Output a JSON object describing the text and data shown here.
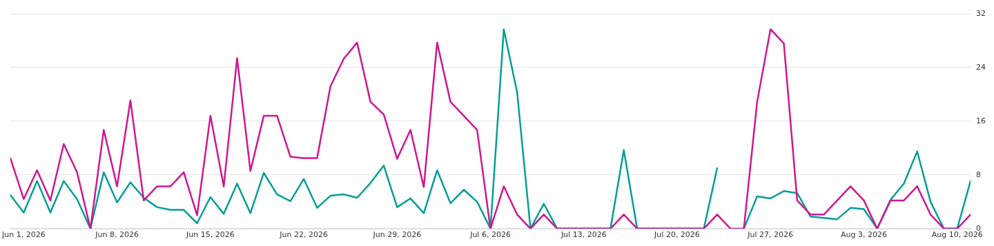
{
  "chart_data": {
    "type": "line",
    "x": [
      "2026-05-31",
      "2026-06-01",
      "2026-06-02",
      "2026-06-03",
      "2026-06-04",
      "2026-06-05",
      "2026-06-06",
      "2026-06-07",
      "2026-06-08",
      "2026-06-09",
      "2026-06-10",
      "2026-06-11",
      "2026-06-12",
      "2026-06-13",
      "2026-06-14",
      "2026-06-15",
      "2026-06-16",
      "2026-06-17",
      "2026-06-18",
      "2026-06-19",
      "2026-06-20",
      "2026-06-21",
      "2026-06-22",
      "2026-06-23",
      "2026-06-24",
      "2026-06-25",
      "2026-06-26",
      "2026-06-27",
      "2026-06-28",
      "2026-06-29",
      "2026-06-30",
      "2026-07-01",
      "2026-07-02",
      "2026-07-03",
      "2026-07-04",
      "2026-07-05",
      "2026-07-06",
      "2026-07-07",
      "2026-07-08",
      "2026-07-09",
      "2026-07-10",
      "2026-07-11",
      "2026-07-12",
      "2026-07-13",
      "2026-07-14",
      "2026-07-15",
      "2026-07-16",
      "2026-07-17",
      "2026-07-18",
      "2026-07-19",
      "2026-07-20",
      "2026-07-21",
      "2026-07-22",
      "2026-07-23",
      "2026-07-24",
      "2026-07-25",
      "2026-07-26",
      "2026-07-27",
      "2026-07-28",
      "2026-07-29",
      "2026-07-30",
      "2026-07-31",
      "2026-08-01",
      "2026-08-02",
      "2026-08-03",
      "2026-08-04",
      "2026-08-05",
      "2026-08-06",
      "2026-08-07",
      "2026-08-08",
      "2026-08-09",
      "2026-08-10",
      "2026-08-11"
    ],
    "series": [
      {
        "color": "#d0168f",
        "values": [
          10.5,
          4.4,
          8.7,
          4.2,
          12.6,
          8.4,
          0,
          14.7,
          6.3,
          19.1,
          4.2,
          6.3,
          6.3,
          8.4,
          2,
          16.8,
          6.3,
          25.4,
          8.6,
          16.8,
          16.8,
          10.7,
          10.5,
          10.5,
          21.2,
          25.3,
          27.7,
          18.9,
          17,
          10.4,
          14.7,
          6.2,
          27.7,
          18.9,
          16.8,
          14.7,
          0,
          6.3,
          2.1,
          0,
          2.1,
          0,
          0,
          0,
          0,
          0,
          2.1,
          0,
          0,
          0,
          0,
          0,
          0,
          2.1,
          0,
          0,
          18.9,
          29.7,
          27.6,
          4.2,
          2.1,
          2.1,
          4.2,
          6.3,
          4.2,
          0,
          4.2,
          4.2,
          6.3,
          2.1,
          0,
          0,
          2.1
        ]
      },
      {
        "color": "#019e96",
        "values": [
          5,
          2.4,
          7.1,
          2.4,
          7.1,
          4.4,
          0,
          8.4,
          3.9,
          6.9,
          4.6,
          3.2,
          2.8,
          2.8,
          0.8,
          4.7,
          2.2,
          6.7,
          2.3,
          8.3,
          5.1,
          4.1,
          7.4,
          3.1,
          4.9,
          5.1,
          4.6,
          6.8,
          9.4,
          3.2,
          4.5,
          2.3,
          8.7,
          3.8,
          5.8,
          4,
          0,
          29.7,
          20.3,
          0,
          3.7,
          0,
          0,
          0,
          0,
          0,
          11.7,
          0,
          0,
          0,
          0,
          0,
          0,
          9,
          null,
          0,
          4.8,
          4.5,
          5.6,
          5.3,
          1.8,
          1.6,
          1.4,
          3.1,
          2.9,
          0,
          4.3,
          6.7,
          11.5,
          4,
          0,
          0,
          7.1
        ]
      }
    ],
    "xlim": [
      "2026-05-31",
      "2026-08-11"
    ],
    "xticks": [
      {
        "value": "2026-06-01",
        "label": "Jun 1, 2026"
      },
      {
        "value": "2026-06-08",
        "label": "Jun 8, 2026"
      },
      {
        "value": "2026-06-15",
        "label": "Jun 15, 2026"
      },
      {
        "value": "2026-06-22",
        "label": "Jun 22, 2026"
      },
      {
        "value": "2026-06-29",
        "label": "Jun 29, 2026"
      },
      {
        "value": "2026-07-06",
        "label": "Jul 6, 2026"
      },
      {
        "value": "2026-07-13",
        "label": "Jul 13, 2026"
      },
      {
        "value": "2026-07-20",
        "label": "Jul 20, 2026"
      },
      {
        "value": "2026-07-27",
        "label": "Jul 27, 2026"
      },
      {
        "value": "2026-08-03",
        "label": "Aug 3, 2026"
      },
      {
        "value": "2026-08-10",
        "label": "Aug 10, 2026"
      }
    ],
    "ylim": [
      0,
      32
    ],
    "yticks": [
      0,
      8,
      16,
      24,
      32
    ],
    "grid": "y",
    "marker": "none",
    "line_style": "solid",
    "legend": false
  }
}
